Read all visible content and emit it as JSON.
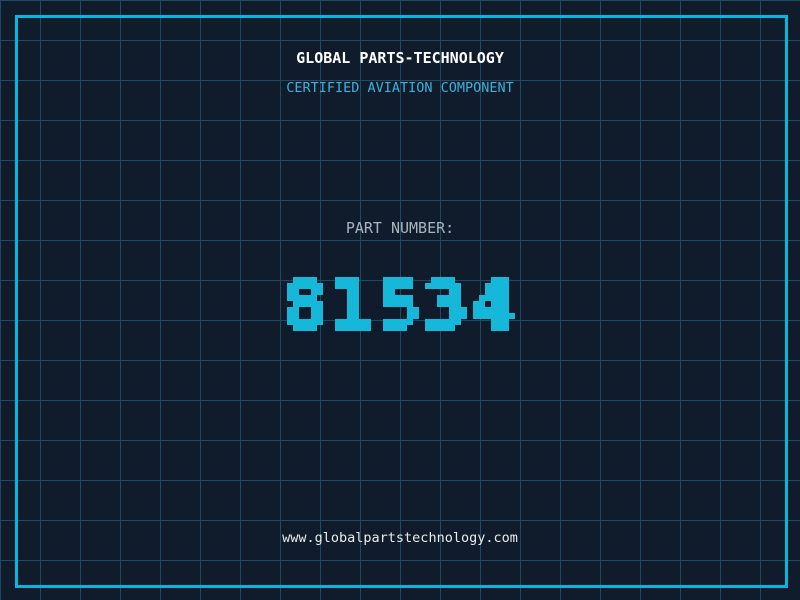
{
  "company": {
    "name": "GLOBAL PARTS-TECHNOLOGY",
    "tagline": "CERTIFIED AVIATION COMPONENT",
    "website": "www.globalpartstechnology.com"
  },
  "part": {
    "label": "PART NUMBER:",
    "value": "81534"
  },
  "colors": {
    "background": "#101b2c",
    "grid_line": "#1d4b60",
    "frame": "#00b9dc",
    "title": "#ffffff",
    "tagline": "#3ab2dc",
    "label": "#a9b4bd",
    "number": "#16b8da",
    "website": "#e9ecec"
  }
}
